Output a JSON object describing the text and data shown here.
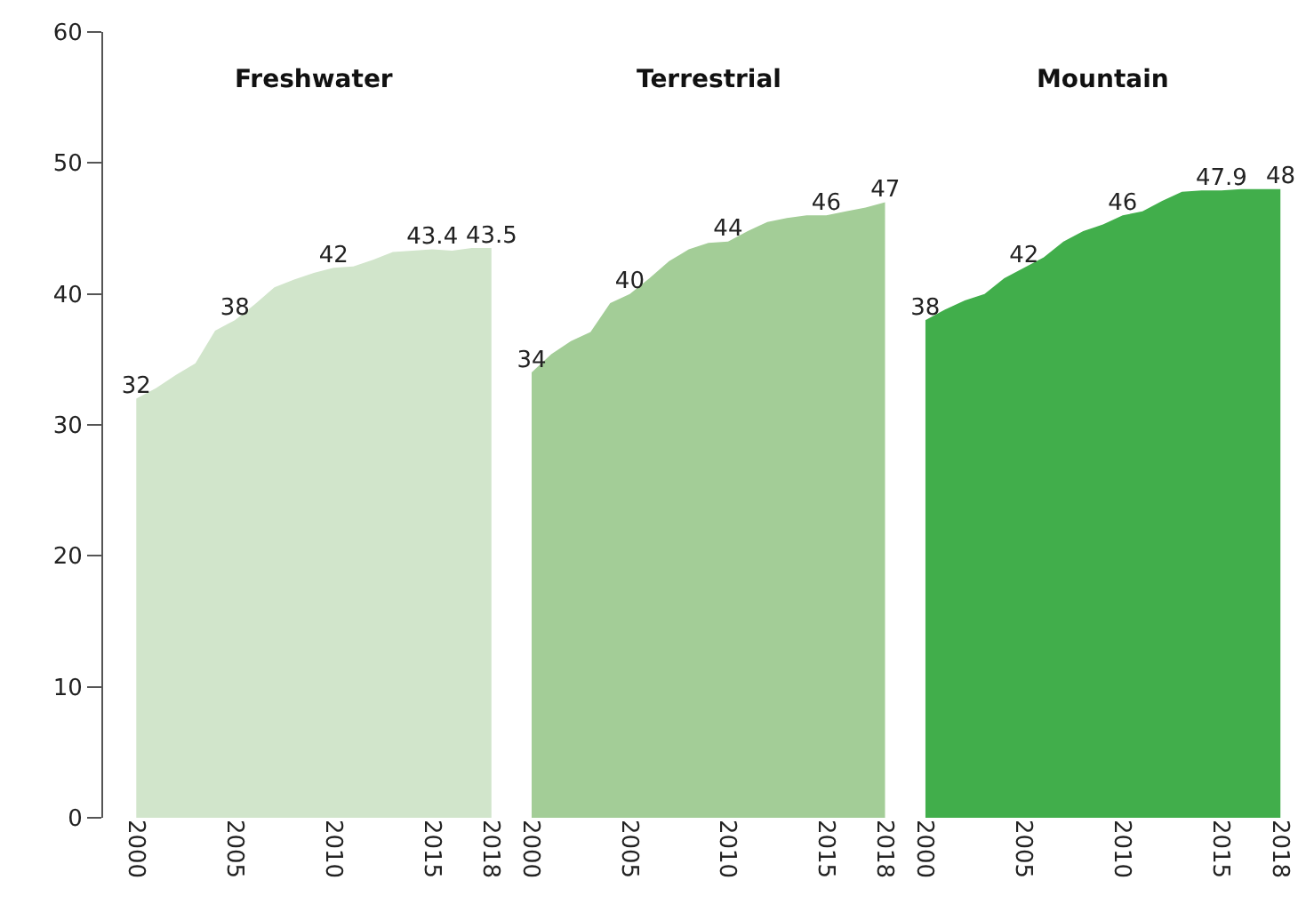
{
  "chart_data": [
    {
      "type": "area",
      "title": "Freshwater",
      "x": [
        2000,
        2001,
        2002,
        2003,
        2004,
        2005,
        2006,
        2007,
        2008,
        2009,
        2010,
        2011,
        2012,
        2013,
        2014,
        2015,
        2016,
        2017,
        2018
      ],
      "series": [
        {
          "color": "#d1e5cb",
          "values": [
            32,
            32.8,
            33.8,
            34.7,
            37.2,
            38,
            39.2,
            40.5,
            41.1,
            41.6,
            42,
            42.1,
            42.6,
            43.2,
            43.3,
            43.4,
            43.3,
            43.5,
            43.5
          ],
          "value_labels": [
            "32",
            null,
            null,
            null,
            null,
            "38",
            null,
            null,
            null,
            null,
            "42",
            null,
            null,
            null,
            null,
            "43.4",
            null,
            null,
            "43.5"
          ]
        }
      ],
      "xlim": [
        2000,
        2018
      ],
      "xticks": [
        2000,
        2005,
        2010,
        2015,
        2018
      ],
      "ylim": [
        0,
        60
      ],
      "yticks": [
        0,
        10,
        20,
        30,
        40,
        50,
        60
      ]
    },
    {
      "type": "area",
      "title": "Terrestrial",
      "x": [
        2000,
        2001,
        2002,
        2003,
        2004,
        2005,
        2006,
        2007,
        2008,
        2009,
        2010,
        2011,
        2012,
        2013,
        2014,
        2015,
        2016,
        2017,
        2018
      ],
      "series": [
        {
          "color": "#a3cd97",
          "values": [
            34,
            35.4,
            36.4,
            37.1,
            39.3,
            40,
            41.2,
            42.5,
            43.4,
            43.9,
            44,
            44.8,
            45.5,
            45.8,
            46,
            46,
            46.3,
            46.6,
            47
          ],
          "value_labels": [
            "34",
            null,
            null,
            null,
            null,
            "40",
            null,
            null,
            null,
            null,
            "44",
            null,
            null,
            null,
            null,
            "46",
            null,
            null,
            "47"
          ]
        }
      ],
      "xlim": [
        2000,
        2018
      ],
      "xticks": [
        2000,
        2005,
        2010,
        2015,
        2018
      ],
      "ylim": [
        0,
        60
      ],
      "yticks": [
        0,
        10,
        20,
        30,
        40,
        50,
        60
      ],
      "tick_labels": "x"
    },
    {
      "type": "area",
      "title": "Mountain",
      "x": [
        2000,
        2001,
        2002,
        2003,
        2004,
        2005,
        2006,
        2007,
        2008,
        2009,
        2010,
        2011,
        2012,
        2013,
        2014,
        2015,
        2016,
        2017,
        2018
      ],
      "series": [
        {
          "color": "#41ae4b",
          "values": [
            38,
            38.8,
            39.5,
            40,
            41.2,
            42,
            42.8,
            44,
            44.8,
            45.3,
            46,
            46.3,
            47.1,
            47.8,
            47.9,
            47.9,
            48,
            48,
            48
          ],
          "value_labels": [
            "38",
            null,
            null,
            null,
            null,
            "42",
            null,
            null,
            null,
            null,
            "46",
            null,
            null,
            null,
            null,
            "47.9",
            null,
            null,
            "48"
          ]
        }
      ],
      "xlim": [
        2000,
        2018
      ],
      "xticks": [
        2000,
        2005,
        2010,
        2015,
        2018
      ],
      "ylim": [
        0,
        60
      ],
      "yticks": [
        0,
        10,
        20,
        30,
        40,
        50,
        60
      ],
      "tick_labels": "x"
    }
  ]
}
